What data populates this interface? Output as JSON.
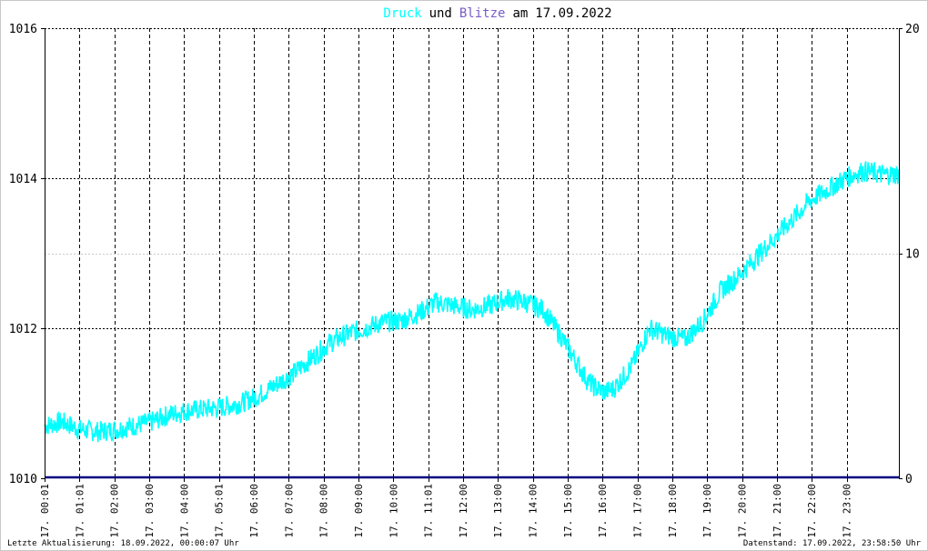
{
  "title": {
    "druck": "Druck",
    "und": "und",
    "blitze": "Blitze",
    "am": "am",
    "date": "17.09.2022"
  },
  "footer": {
    "left": "Letzte Aktualisierung: 18.09.2022, 00:00:07 Uhr",
    "right": "Datenstand: 17.09.2022, 23:58:50 Uhr"
  },
  "colors": {
    "druck": "#00ffff",
    "blitze": "#000080",
    "grid": "#000000",
    "frame": "#000000"
  },
  "chart_data": {
    "type": "line",
    "grid": true,
    "left_axis": {
      "ticks": [
        "1010",
        "1012",
        "1014",
        "1016"
      ],
      "range": [
        1010,
        1016
      ]
    },
    "right_axis": {
      "ticks": [
        "0",
        "10",
        "20"
      ],
      "range": [
        0,
        20
      ]
    },
    "x_ticks": [
      "17. 00:01",
      "17. 01:01",
      "17. 02:00",
      "17. 03:00",
      "17. 04:00",
      "17. 05:01",
      "17. 06:00",
      "17. 07:00",
      "17. 08:00",
      "17. 09:00",
      "17. 10:00",
      "17. 11:01",
      "17. 12:00",
      "17. 13:00",
      "17. 14:00",
      "17. 15:00",
      "17. 16:00",
      "17. 17:00",
      "17. 18:00",
      "17. 19:00",
      "17. 20:00",
      "17. 21:00",
      "17. 22:00",
      "17. 23:00"
    ],
    "series": [
      {
        "name": "Druck",
        "axis": "left",
        "x_hours": [
          0,
          0.5,
          1,
          1.5,
          2,
          2.5,
          3,
          3.5,
          4,
          4.5,
          5,
          5.5,
          6,
          6.5,
          7,
          7.5,
          8,
          8.5,
          9,
          9.5,
          10,
          10.5,
          11,
          11.5,
          12,
          12.5,
          13,
          13.5,
          14,
          14.5,
          15,
          15.25,
          15.5,
          15.75,
          16,
          16.5,
          17,
          17.5,
          18,
          18.5,
          19,
          19.5,
          20,
          20.5,
          21,
          21.5,
          22,
          22.5,
          23,
          23.5,
          24
        ],
        "values": [
          1010.7,
          1010.75,
          1010.65,
          1010.62,
          1010.65,
          1010.7,
          1010.75,
          1010.85,
          1010.9,
          1010.92,
          1010.95,
          1011.0,
          1011.1,
          1011.25,
          1011.4,
          1011.6,
          1011.8,
          1011.92,
          1012.0,
          1012.08,
          1012.1,
          1012.2,
          1012.35,
          1012.3,
          1012.25,
          1012.3,
          1012.4,
          1012.35,
          1012.25,
          1011.9,
          1011.5,
          1011.3,
          1011.2,
          1011.15,
          1011.2,
          1011.5,
          1012.0,
          1011.9,
          1011.85,
          1012.1,
          1012.5,
          1012.7,
          1012.95,
          1013.2,
          1013.45,
          1013.7,
          1013.85,
          1014.0,
          1014.1,
          1014.05,
          1014.05
        ]
      },
      {
        "name": "Blitze",
        "axis": "right",
        "x_hours": [
          0,
          24
        ],
        "values": [
          0,
          0
        ]
      }
    ]
  }
}
